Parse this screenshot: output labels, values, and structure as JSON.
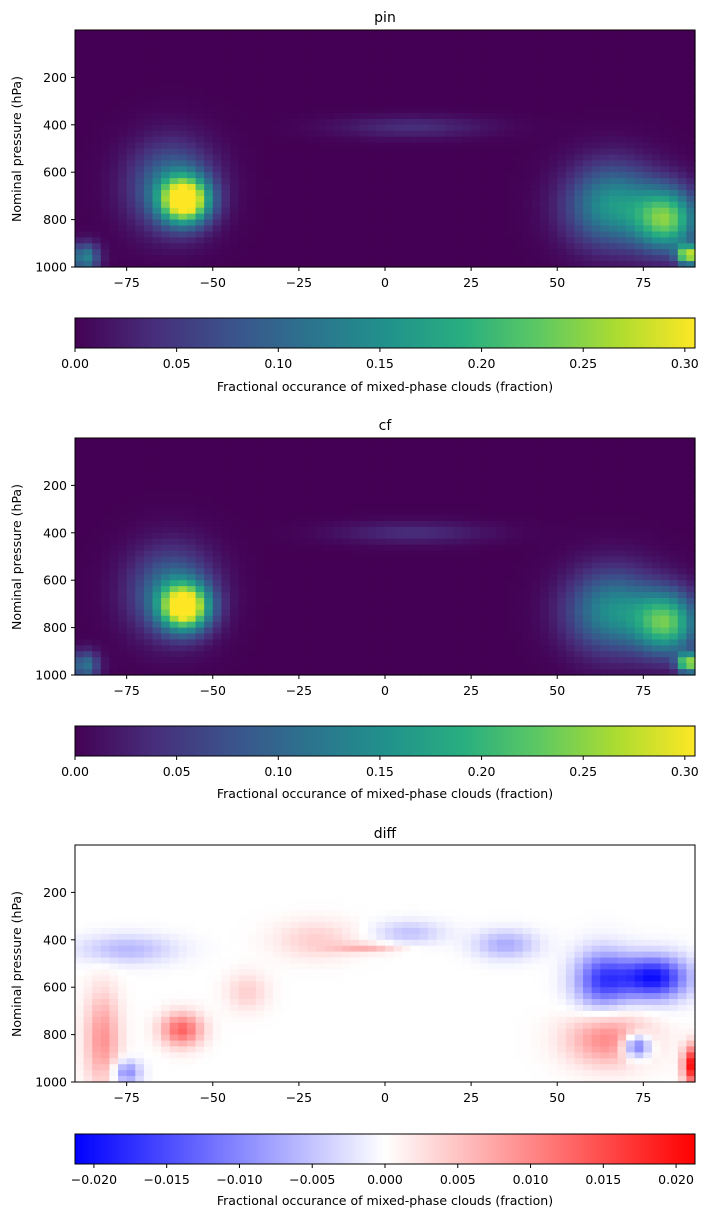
{
  "chart_data": [
    {
      "type": "heatmap",
      "title": "pin",
      "xlabel": "",
      "ylabel": "Nominal pressure (hPa)",
      "xlim": [
        -90,
        90
      ],
      "ylim": [
        0,
        1000
      ],
      "y_inverted": true,
      "xticks": [
        -75,
        -50,
        -25,
        0,
        25,
        50,
        75
      ],
      "yticks": [
        200,
        400,
        600,
        800,
        1000
      ],
      "colormap": "viridis",
      "colorbar": {
        "label": "Fractional occurance of mixed-phase clouds (fraction)",
        "orientation": "horizontal",
        "range": [
          0,
          0.305
        ],
        "ticks": [
          "0.00",
          "0.05",
          "0.10",
          "0.15",
          "0.20",
          "0.25",
          "0.30"
        ]
      },
      "features": [
        {
          "lat": -58,
          "pres": 720,
          "value": 0.3,
          "lat_width": 7,
          "pres_width": 95
        },
        {
          "lat": -62,
          "pres": 660,
          "value": 0.12,
          "lat_width": 12,
          "pres_width": 180
        },
        {
          "lat": -87,
          "pres": 960,
          "value": 0.14,
          "lat_width": 4,
          "pres_width": 60
        },
        {
          "lat": 82,
          "pres": 800,
          "value": 0.22,
          "lat_width": 9,
          "pres_width": 130
        },
        {
          "lat": 88,
          "pres": 950,
          "value": 0.27,
          "lat_width": 3,
          "pres_width": 40
        },
        {
          "lat": 66,
          "pres": 740,
          "value": 0.16,
          "lat_width": 13,
          "pres_width": 170
        },
        {
          "lat": 8,
          "pres": 410,
          "value": 0.04,
          "lat_width": 22,
          "pres_width": 45
        }
      ]
    },
    {
      "type": "heatmap",
      "title": "cf",
      "xlabel": "",
      "ylabel": "Nominal pressure (hPa)",
      "xlim": [
        -90,
        90
      ],
      "ylim": [
        0,
        1000
      ],
      "y_inverted": true,
      "xticks": [
        -75,
        -50,
        -25,
        0,
        25,
        50,
        75
      ],
      "yticks": [
        200,
        400,
        600,
        800,
        1000
      ],
      "colormap": "viridis",
      "colorbar": {
        "label": "Fractional occurance of mixed-phase clouds (fraction)",
        "orientation": "horizontal",
        "range": [
          0,
          0.305
        ],
        "ticks": [
          "0.00",
          "0.05",
          "0.10",
          "0.15",
          "0.20",
          "0.25",
          "0.30"
        ]
      },
      "features": [
        {
          "lat": -58,
          "pres": 715,
          "value": 0.29,
          "lat_width": 7,
          "pres_width": 95
        },
        {
          "lat": -62,
          "pres": 650,
          "value": 0.12,
          "lat_width": 12,
          "pres_width": 180
        },
        {
          "lat": -87,
          "pres": 960,
          "value": 0.12,
          "lat_width": 4,
          "pres_width": 60
        },
        {
          "lat": 82,
          "pres": 780,
          "value": 0.21,
          "lat_width": 9,
          "pres_width": 130
        },
        {
          "lat": 88,
          "pres": 950,
          "value": 0.26,
          "lat_width": 3,
          "pres_width": 40
        },
        {
          "lat": 66,
          "pres": 730,
          "value": 0.15,
          "lat_width": 13,
          "pres_width": 170
        },
        {
          "lat": 8,
          "pres": 400,
          "value": 0.04,
          "lat_width": 22,
          "pres_width": 45
        }
      ]
    },
    {
      "type": "heatmap",
      "title": "diff",
      "xlabel": "",
      "ylabel": "Nominal pressure (hPa)",
      "xlim": [
        -90,
        90
      ],
      "ylim": [
        0,
        1000
      ],
      "y_inverted": true,
      "xticks": [
        -75,
        -50,
        -25,
        0,
        25,
        50,
        75
      ],
      "yticks": [
        200,
        400,
        600,
        800,
        1000
      ],
      "colormap": "bwr",
      "colorbar": {
        "label": "Fractional occurance of mixed-phase clouds (fraction)",
        "orientation": "horizontal",
        "range": [
          -0.0213,
          0.0213
        ],
        "ticks": [
          "−0.020",
          "−0.015",
          "−0.010",
          "−0.005",
          "0.000",
          "0.005",
          "0.010",
          "0.015",
          "0.020"
        ]
      },
      "features": [
        {
          "lat": 78,
          "pres": 560,
          "value": -0.02,
          "lat_width": 10,
          "pres_width": 90
        },
        {
          "lat": 63,
          "pres": 570,
          "value": -0.015,
          "lat_width": 8,
          "pres_width": 120
        },
        {
          "lat": 73,
          "pres": 850,
          "value": -0.016,
          "lat_width": 4,
          "pres_width": 50
        },
        {
          "lat": 65,
          "pres": 820,
          "value": 0.01,
          "lat_width": 12,
          "pres_width": 110
        },
        {
          "lat": 89,
          "pres": 930,
          "value": 0.02,
          "lat_width": 2.5,
          "pres_width": 80
        },
        {
          "lat": -59,
          "pres": 780,
          "value": 0.013,
          "lat_width": 6,
          "pres_width": 70
        },
        {
          "lat": -82,
          "pres": 820,
          "value": 0.009,
          "lat_width": 5,
          "pres_width": 200
        },
        {
          "lat": -75,
          "pres": 960,
          "value": -0.01,
          "lat_width": 4,
          "pres_width": 50
        },
        {
          "lat": -75,
          "pres": 440,
          "value": -0.006,
          "lat_width": 14,
          "pres_width": 60
        },
        {
          "lat": 35,
          "pres": 420,
          "value": -0.007,
          "lat_width": 9,
          "pres_width": 60
        },
        {
          "lat": -5,
          "pres": 435,
          "value": 0.006,
          "lat_width": 10,
          "pres_width": 20
        },
        {
          "lat": 7,
          "pres": 370,
          "value": -0.005,
          "lat_width": 10,
          "pres_width": 50
        },
        {
          "lat": -20,
          "pres": 400,
          "value": 0.004,
          "lat_width": 12,
          "pres_width": 80
        },
        {
          "lat": -40,
          "pres": 620,
          "value": 0.004,
          "lat_width": 6,
          "pres_width": 80
        }
      ]
    }
  ]
}
